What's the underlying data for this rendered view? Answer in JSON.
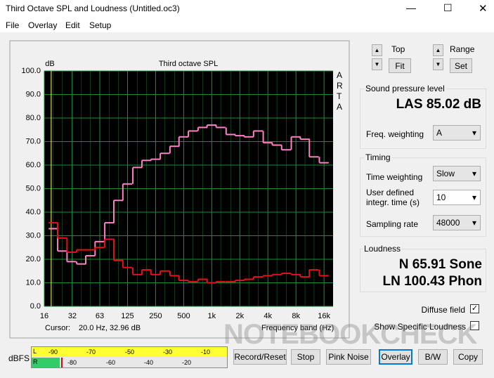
{
  "window": {
    "title": "Third Octave SPL and Loudness (Untitled.oc3)"
  },
  "menu": [
    "File",
    "Overlay",
    "Edit",
    "Setup"
  ],
  "chart_data": {
    "type": "line",
    "title": "Third octave SPL",
    "y_label": "dB",
    "x_label": "Frequency band (Hz)",
    "brand": "ARTA",
    "cursor_label": "Cursor:",
    "cursor_value": "20.0 Hz, 32.96 dB",
    "x": [
      20,
      25,
      31.5,
      40,
      50,
      63,
      80,
      100,
      125,
      160,
      200,
      250,
      315,
      400,
      500,
      630,
      800,
      1000,
      1250,
      1600,
      2000,
      2500,
      3150,
      4000,
      5000,
      6300,
      8000,
      10000,
      12500,
      16000
    ],
    "xlim": [
      16,
      20000
    ],
    "log_x": true,
    "xticks": [
      16,
      32,
      63,
      125,
      250,
      500,
      {
        "value": 1000,
        "label": "1k"
      },
      {
        "value": 2000,
        "label": "2k"
      },
      {
        "value": 4000,
        "label": "4k"
      },
      {
        "value": 8000,
        "label": "8k"
      },
      {
        "value": 16000,
        "label": "16k"
      }
    ],
    "ylim": [
      0,
      100
    ],
    "yticks": [
      {
        "value": 0,
        "label": "0.0"
      },
      {
        "value": 10,
        "label": "10.0"
      },
      {
        "value": 20,
        "label": "20.0"
      },
      {
        "value": 30,
        "label": "30.0"
      },
      {
        "value": 40,
        "label": "40.0"
      },
      {
        "value": 50,
        "label": "50.0"
      },
      {
        "value": 60,
        "label": "60.0"
      },
      {
        "value": 70,
        "label": "70.0"
      },
      {
        "value": 80,
        "label": "80.0"
      },
      {
        "value": 90,
        "label": "90.0"
      },
      {
        "value": 100,
        "label": "100.0"
      }
    ],
    "grid": true,
    "background": "#000000",
    "grid_color": "#1e8c3a",
    "series": [
      {
        "color": "#ff80c4",
        "values": [
          33,
          23.5,
          19,
          18,
          21.5,
          27.5,
          35.5,
          45,
          52,
          59,
          62,
          62.5,
          65,
          68,
          72,
          74.5,
          76,
          77,
          76,
          73,
          72.5,
          72,
          74.5,
          69.5,
          68.5,
          66.5,
          72,
          71,
          63.5,
          61
        ]
      },
      {
        "color": "#e8101a",
        "values": [
          35.5,
          29,
          23,
          24,
          24,
          25,
          28.5,
          19.5,
          16.5,
          13.5,
          15.5,
          13.5,
          15,
          13,
          11,
          10.5,
          11.5,
          10,
          10.5,
          10.5,
          11,
          11.5,
          12.5,
          13,
          13.5,
          14,
          13.5,
          12.5,
          15.5,
          13
        ]
      }
    ]
  },
  "controls": {
    "top": "Top",
    "fit": "Fit",
    "range": "Range",
    "set": "Set"
  },
  "spl": {
    "group": "Sound pressure level",
    "reading": "LAS 85.02 dB",
    "freq_weighting_label": "Freq. weighting",
    "freq_weighting": "A"
  },
  "timing": {
    "group": "Timing",
    "time_weighting_label": "Time weighting",
    "time_weighting": "Slow",
    "integr_label_1": "User defined",
    "integr_label_2": "integr. time (s)",
    "integr_time": "10",
    "sampling_rate_label": "Sampling rate",
    "sampling_rate": "48000"
  },
  "loudness": {
    "group": "Loudness",
    "n": "N 65.91 Sone",
    "ln": "LN 100.43 Phon",
    "diffuse_field": "Diffuse field",
    "show_specific": "Show Specific Loudness"
  },
  "meter": {
    "label": "dBFS",
    "channels": [
      "L",
      "R"
    ],
    "scale_l": [
      "-90",
      "-70",
      "-50",
      "-30",
      "-10"
    ],
    "scale_r": [
      "-80",
      "-60",
      "-40",
      "-20"
    ]
  },
  "buttons": [
    "Record/Reset",
    "Stop",
    "Pink Noise",
    "Overlay",
    "B/W",
    "Copy"
  ],
  "watermark": "NOTEBOOKCHECK"
}
